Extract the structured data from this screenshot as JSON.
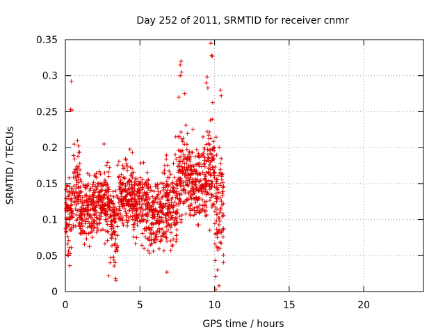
{
  "chart_data": {
    "type": "scatter",
    "title": "Day 252 of 2011, SRMTID for receiver cnmr",
    "xlabel": "GPS time / hours",
    "ylabel": "SRMTID / TECUs",
    "xlim": [
      0,
      24
    ],
    "ylim": [
      0,
      0.35
    ],
    "xticks": [
      0,
      5,
      10,
      15,
      20
    ],
    "yticks": [
      0,
      0.05,
      0.1,
      0.15,
      0.2,
      0.25,
      0.3,
      0.35
    ],
    "ytick_labels": [
      "0",
      "0.05",
      "0.1",
      "0.15",
      "0.2",
      "0.25",
      "0.3",
      "0.35"
    ],
    "xtick_labels": [
      "0",
      "5",
      "10",
      "15",
      "20"
    ],
    "grid": true,
    "marker": "+",
    "color": "#e00000",
    "series": [
      {
        "name": "SRMTID",
        "segments": [
          {
            "x0": 0.0,
            "x1": 0.5,
            "mean": 0.11,
            "spread": 0.045
          },
          {
            "x0": 0.5,
            "x1": 1.0,
            "mean": 0.15,
            "spread": 0.05
          },
          {
            "x0": 1.0,
            "x1": 2.0,
            "mean": 0.115,
            "spread": 0.035
          },
          {
            "x0": 2.0,
            "x1": 3.0,
            "mean": 0.125,
            "spread": 0.04
          },
          {
            "x0": 3.0,
            "x1": 3.5,
            "mean": 0.09,
            "spread": 0.05
          },
          {
            "x0": 3.5,
            "x1": 4.5,
            "mean": 0.135,
            "spread": 0.04
          },
          {
            "x0": 4.5,
            "x1": 5.5,
            "mean": 0.12,
            "spread": 0.04
          },
          {
            "x0": 5.5,
            "x1": 6.5,
            "mean": 0.105,
            "spread": 0.04
          },
          {
            "x0": 6.5,
            "x1": 7.5,
            "mean": 0.12,
            "spread": 0.05
          },
          {
            "x0": 7.5,
            "x1": 8.5,
            "mean": 0.16,
            "spread": 0.05
          },
          {
            "x0": 8.5,
            "x1": 9.5,
            "mean": 0.155,
            "spread": 0.045
          },
          {
            "x0": 9.5,
            "x1": 10.0,
            "mean": 0.17,
            "spread": 0.06
          },
          {
            "x0": 10.0,
            "x1": 10.6,
            "mean": 0.11,
            "spread": 0.07
          }
        ],
        "notable_points": [
          {
            "x": 0.4,
            "y": 0.292
          },
          {
            "x": 0.35,
            "y": 0.253
          },
          {
            "x": 0.45,
            "y": 0.252
          },
          {
            "x": 0.3,
            "y": 0.036
          },
          {
            "x": 0.2,
            "y": 0.05
          },
          {
            "x": 2.6,
            "y": 0.205
          },
          {
            "x": 2.9,
            "y": 0.022
          },
          {
            "x": 3.0,
            "y": 0.04
          },
          {
            "x": 6.8,
            "y": 0.027
          },
          {
            "x": 7.4,
            "y": 0.215
          },
          {
            "x": 7.7,
            "y": 0.315
          },
          {
            "x": 7.75,
            "y": 0.32
          },
          {
            "x": 7.8,
            "y": 0.305
          },
          {
            "x": 7.7,
            "y": 0.3
          },
          {
            "x": 7.6,
            "y": 0.27
          },
          {
            "x": 8.0,
            "y": 0.275
          },
          {
            "x": 9.45,
            "y": 0.29
          },
          {
            "x": 9.5,
            "y": 0.298
          },
          {
            "x": 9.55,
            "y": 0.283
          },
          {
            "x": 9.75,
            "y": 0.345
          },
          {
            "x": 9.8,
            "y": 0.328
          },
          {
            "x": 9.85,
            "y": 0.327
          },
          {
            "x": 10.4,
            "y": 0.28
          },
          {
            "x": 10.45,
            "y": 0.272
          },
          {
            "x": 10.1,
            "y": 0.003
          },
          {
            "x": 10.3,
            "y": 0.008
          },
          {
            "x": 10.2,
            "y": 0.03
          }
        ]
      }
    ]
  }
}
